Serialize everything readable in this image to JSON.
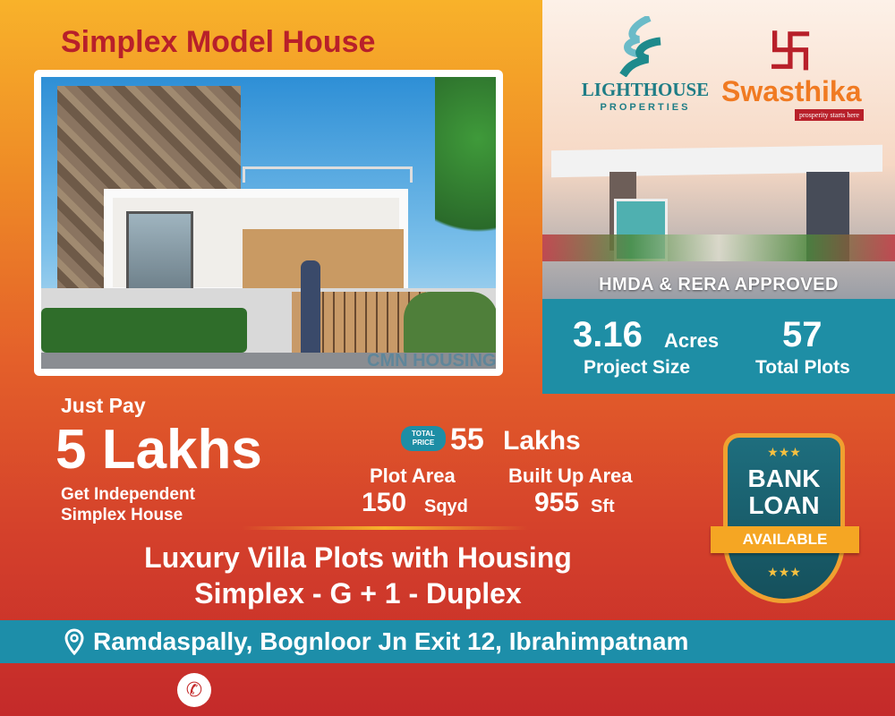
{
  "headline": "Simplex Model House",
  "watermark": "CMN HOUSING",
  "brands": {
    "lighthouse": {
      "name": "LIGHTHOUSE",
      "sub": "PROPERTIES"
    },
    "swasthika": {
      "name": "Swasthika",
      "tagline": "prosperity starts here"
    }
  },
  "approval": "HMDA & RERA APPROVED",
  "stats": {
    "size_value": "3.16",
    "size_unit": "Acres",
    "size_label": "Project Size",
    "plots_value": "57",
    "plots_label": "Total Plots"
  },
  "offer": {
    "just_pay": "Just Pay",
    "amount": "5 Lakhs",
    "desc_line1": "Get Independent",
    "desc_line2": "Simplex House"
  },
  "price": {
    "badge_line1": "TOTAL",
    "badge_line2": "PRICE",
    "value": "55",
    "unit": "Lakhs"
  },
  "areas": {
    "plot_label": "Plot Area",
    "plot_value": "150",
    "plot_unit": "Sqyd",
    "built_label": "Built Up Area",
    "built_value": "955",
    "built_unit": "Sft"
  },
  "tagline_line1": "Luxury Villa Plots with Housing",
  "tagline_line2": "Simplex - G + 1 - Duplex",
  "bank_loan": {
    "line1": "BANK",
    "line2": "LOAN",
    "ribbon": "AVAILABLE"
  },
  "location": "Ramdaspally, Bognloor Jn Exit 12, Ibrahimpatnam",
  "colors": {
    "teal": "#1e8ea5",
    "red_title": "#b8202a",
    "gold": "#f5a623",
    "brand_orange": "#f07a22"
  }
}
